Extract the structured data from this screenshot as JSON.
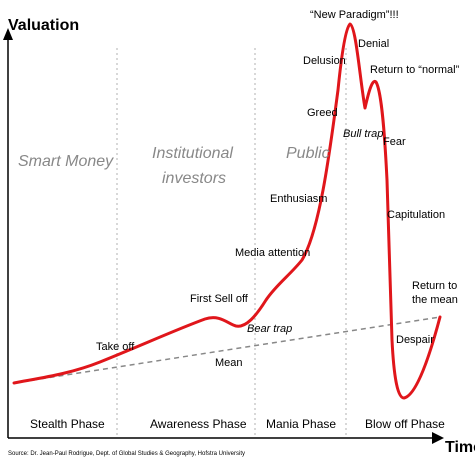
{
  "axes": {
    "y_title": "Valuation",
    "x_title": "Time"
  },
  "phase_titles": [
    "Smart Money",
    "Institutional",
    "investors",
    "Public"
  ],
  "phases": [
    "Stealth Phase",
    "Awareness Phase",
    "Mania Phase",
    "Blow off Phase"
  ],
  "labels": {
    "take_off": "Take off",
    "first_sell_off": "First Sell off",
    "bear_trap": "Bear trap",
    "media_attention": "Media attention",
    "enthusiasm": "Enthusiasm",
    "greed": "Greed",
    "delusion": "Delusion",
    "new_paradigm": "“New Paradigm”!!!",
    "denial": "Denial",
    "return_normal": "Return to “normal”",
    "bull_trap": "Bull trap",
    "fear": "Fear",
    "capitulation": "Capitulation",
    "return_mean_1": "Return to",
    "return_mean_2": "the mean",
    "despair": "Despair",
    "mean": "Mean"
  },
  "source": "Source: Dr. Jean-Paul Rodrigue, Dept. of Global Studies & Geography, Hofstra University",
  "colors": {
    "curve": "#e0161b",
    "mean_line": "#888888",
    "divider": "#b0b0b0"
  }
}
